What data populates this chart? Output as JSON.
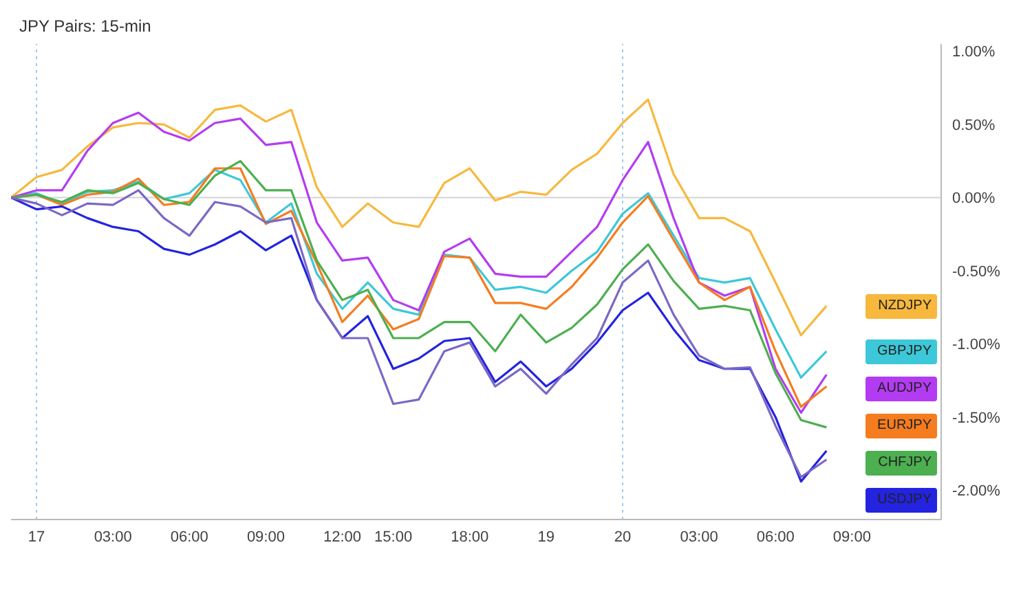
{
  "chart_data": {
    "type": "line",
    "title": "JPY Pairs: 15-min",
    "categories": [
      null,
      "17",
      null,
      null,
      "03:00",
      null,
      null,
      "06:00",
      null,
      null,
      "09:00",
      null,
      null,
      "12:00",
      null,
      "15:00",
      null,
      null,
      "18:00",
      null,
      null,
      "19",
      null,
      null,
      "20",
      null,
      null,
      "03:00",
      null,
      null,
      "06:00",
      null,
      null,
      "09:00"
    ],
    "ylim": [
      -2.2,
      1.05
    ],
    "yticks": [
      {
        "value": 1,
        "label": "1.00%"
      },
      {
        "value": 0.5,
        "label": "0.50%"
      },
      {
        "value": 0,
        "label": "0.00%"
      },
      {
        "value": -0.5,
        "label": "-0.50%"
      },
      {
        "value": -1,
        "label": "-1.00%"
      },
      {
        "value": -1.5,
        "label": "-1.50%"
      },
      {
        "value": -2,
        "label": "-2.00%"
      }
    ],
    "grid": false,
    "legend": "right",
    "marker": "none",
    "line_style": "solid",
    "ref_lines": [
      {
        "axis": "x",
        "value": "17",
        "color": "#9ccaf0",
        "line_style": "dotted"
      },
      {
        "axis": "x",
        "value": "20",
        "color": "#9ccaf0",
        "line_style": "dotted"
      },
      {
        "axis": "y",
        "value": 0,
        "color": "#d4d4d4",
        "line_style": "solid"
      }
    ],
    "series": [
      {
        "name": "NZDJPY",
        "color": "#f7b83d",
        "values": [
          0,
          0.14,
          0.19,
          0.35,
          0.48,
          0.51,
          0.5,
          0.41,
          0.6,
          0.63,
          0.52,
          0.6,
          0.07,
          -0.2,
          -0.04,
          -0.17,
          -0.2,
          0.1,
          0.2,
          -0.02,
          0.04,
          0.02,
          0.19,
          0.3,
          0.51,
          0.67,
          0.16,
          -0.14,
          -0.14,
          -0.23,
          -0.58,
          -0.94,
          -0.74,
          null
        ]
      },
      {
        "name": "GBPJPY",
        "color": "#3cc8d8",
        "values": [
          0,
          0.03,
          -0.04,
          0.04,
          0.05,
          0.11,
          -0.01,
          0.03,
          0.19,
          0.12,
          -0.17,
          -0.04,
          -0.52,
          -0.76,
          -0.58,
          -0.76,
          -0.8,
          -0.39,
          -0.41,
          -0.63,
          -0.61,
          -0.65,
          -0.5,
          -0.37,
          -0.11,
          0.03,
          -0.26,
          -0.55,
          -0.58,
          -0.55,
          -0.9,
          -1.23,
          -1.05,
          null
        ]
      },
      {
        "name": "AUDJPY",
        "color": "#b33cf2",
        "values": [
          0,
          0.05,
          0.05,
          0.32,
          0.51,
          0.58,
          0.45,
          0.39,
          0.51,
          0.54,
          0.36,
          0.38,
          -0.17,
          -0.43,
          -0.41,
          -0.7,
          -0.77,
          -0.37,
          -0.28,
          -0.52,
          -0.54,
          -0.54,
          -0.37,
          -0.2,
          0.12,
          0.38,
          -0.14,
          -0.58,
          -0.67,
          -0.61,
          -1.17,
          -1.47,
          -1.21,
          null
        ]
      },
      {
        "name": "EURJPY",
        "color": "#f57c1f",
        "values": [
          0,
          0.02,
          -0.05,
          0.02,
          0.04,
          0.13,
          -0.05,
          -0.03,
          0.2,
          0.2,
          -0.18,
          -0.09,
          -0.45,
          -0.85,
          -0.67,
          -0.9,
          -0.83,
          -0.4,
          -0.41,
          -0.72,
          -0.72,
          -0.76,
          -0.61,
          -0.41,
          -0.17,
          0.01,
          -0.29,
          -0.58,
          -0.7,
          -0.61,
          -1.05,
          -1.43,
          -1.29,
          null
        ]
      },
      {
        "name": "CHFJPY",
        "color": "#4caf50",
        "values": [
          0,
          0.02,
          -0.03,
          0.05,
          0.03,
          0.1,
          -0.01,
          -0.05,
          0.15,
          0.25,
          0.05,
          0.05,
          -0.43,
          -0.7,
          -0.63,
          -0.96,
          -0.96,
          -0.85,
          -0.85,
          -1.05,
          -0.8,
          -0.99,
          -0.89,
          -0.73,
          -0.49,
          -0.32,
          -0.57,
          -0.76,
          -0.74,
          -0.77,
          -1.2,
          -1.52,
          -1.57,
          null
        ]
      },
      {
        "name": "USDJPY",
        "color": "#2323e0",
        "values": [
          0,
          -0.08,
          -0.06,
          -0.14,
          -0.2,
          -0.23,
          -0.35,
          -0.39,
          -0.32,
          -0.23,
          -0.36,
          -0.26,
          -0.7,
          -0.96,
          -0.81,
          -1.17,
          -1.1,
          -0.98,
          -0.96,
          -1.26,
          -1.12,
          -1.29,
          -1.17,
          -0.99,
          -0.77,
          -0.65,
          -0.9,
          -1.11,
          -1.17,
          -1.17,
          -1.5,
          -1.94,
          -1.73,
          null
        ]
      },
      {
        "color": "#7b68c4",
        "values": [
          0,
          -0.04,
          -0.12,
          -0.04,
          -0.05,
          0.05,
          -0.14,
          -0.26,
          -0.03,
          -0.06,
          -0.17,
          -0.14,
          -0.7,
          -0.96,
          -0.96,
          -1.41,
          -1.38,
          -1.05,
          -0.99,
          -1.29,
          -1.17,
          -1.34,
          -1.14,
          -0.96,
          -0.58,
          -0.43,
          -0.8,
          -1.08,
          -1.17,
          -1.16,
          -1.56,
          -1.91,
          -1.79,
          null
        ]
      }
    ]
  }
}
